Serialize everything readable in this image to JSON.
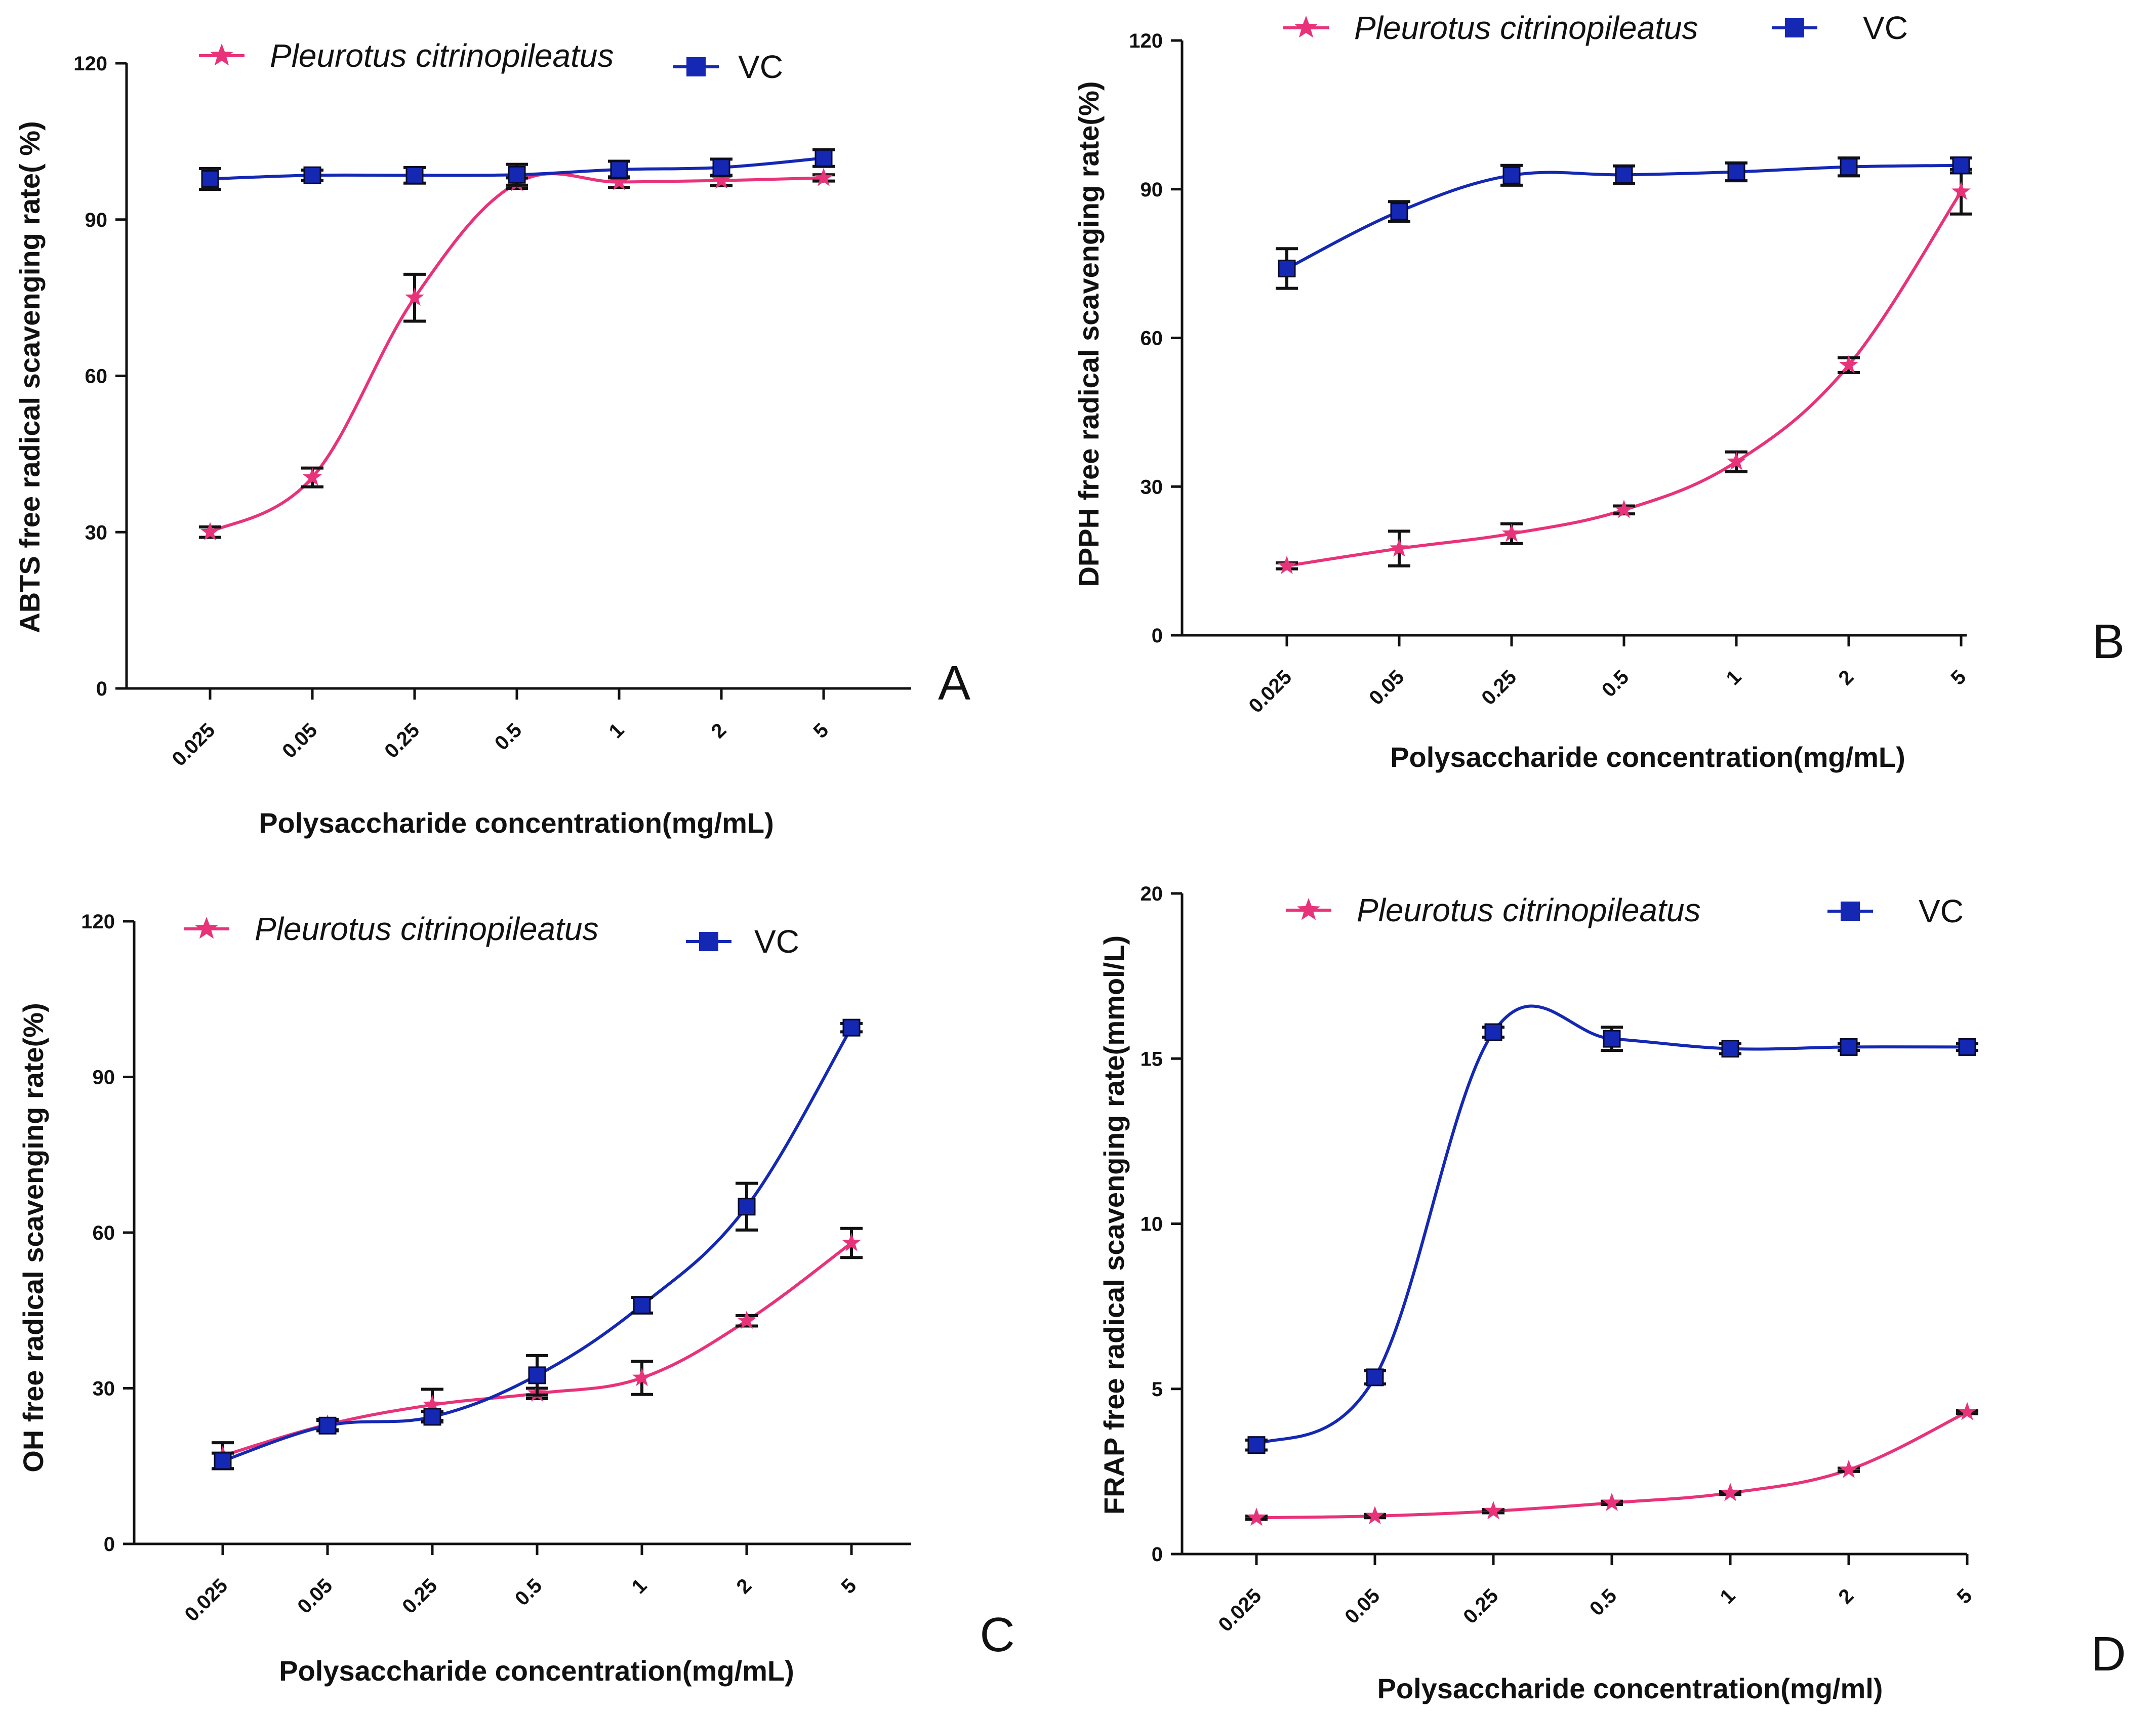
{
  "colors": {
    "pc": "#e8327a",
    "vc": "#1428b4",
    "axis": "#111111",
    "error": "#111111"
  },
  "chart_data": [
    {
      "type": "line",
      "panel": "A",
      "categories": [
        "0.025",
        "0.05",
        "0.25",
        "0.5",
        "1",
        "2",
        "5"
      ],
      "xlabel": "Polysaccharide concentration(mg/mL)",
      "ylabel": "ABTS free radical scavenging rate(   %)",
      "ylim": [
        0,
        120
      ],
      "yticks": [
        "0",
        "30",
        "60",
        "90",
        "120"
      ],
      "legend_position": "top",
      "series": [
        {
          "name": "Pleurotus citrinopileatus",
          "marker": "star",
          "values": [
            30,
            40.5,
            75,
            97,
            97.2,
            97.5,
            98
          ],
          "errors": [
            1,
            1.8,
            4.5,
            1,
            1,
            1,
            0.6
          ]
        },
        {
          "name": "VC",
          "marker": "square",
          "values": [
            97.8,
            98.5,
            98.5,
            98.6,
            99.6,
            100,
            101.8
          ],
          "errors": [
            2,
            1,
            1.5,
            2,
            1.6,
            1.6,
            1.6
          ]
        }
      ]
    },
    {
      "type": "line",
      "panel": "B",
      "categories": [
        "0.025",
        "0.05",
        "0.25",
        "0.5",
        "1",
        "2",
        "5"
      ],
      "xlabel": "Polysaccharide concentration(mg/mL)",
      "ylabel": "DPPH free radical scavenging rate(%)",
      "ylim": [
        0,
        120
      ],
      "yticks": [
        "0",
        "30",
        "60",
        "90",
        "120"
      ],
      "legend_position": "top",
      "series": [
        {
          "name": "Pleurotus citrinopileatus",
          "marker": "star",
          "values": [
            14,
            17.5,
            20.5,
            25.3,
            35,
            54.5,
            89.5
          ],
          "errors": [
            0.6,
            3.5,
            2,
            0.8,
            2,
            1.5,
            4.5
          ]
        },
        {
          "name": "VC",
          "marker": "square",
          "values": [
            74,
            85.5,
            92.8,
            92.9,
            93.5,
            94.5,
            94.8
          ],
          "errors": [
            4,
            2,
            2,
            1.8,
            1.8,
            1.8,
            1.5
          ]
        }
      ]
    },
    {
      "type": "line",
      "panel": "C",
      "categories": [
        "0.025",
        "0.05",
        "0.25",
        "0.5",
        "1",
        "2",
        "5"
      ],
      "xlabel": "Polysaccharide concentration(mg/mL)",
      "ylabel": "OH free radical scavenging rate(%)",
      "ylim": [
        0,
        120
      ],
      "yticks": [
        "0",
        "30",
        "60",
        "90",
        "120"
      ],
      "legend_position": "top",
      "series": [
        {
          "name": "Pleurotus citrinopileatus",
          "marker": "star",
          "values": [
            17,
            23,
            26.8,
            29,
            32,
            43,
            58
          ],
          "errors": [
            2.5,
            1,
            3,
            1,
            3.2,
            1,
            2.8
          ]
        },
        {
          "name": "VC",
          "marker": "square",
          "values": [
            16,
            22.8,
            24.5,
            32.5,
            46,
            65,
            99.5
          ],
          "errors": [
            1.5,
            1,
            1,
            3.8,
            1.5,
            4.5,
            0.8
          ]
        }
      ]
    },
    {
      "type": "line",
      "panel": "D",
      "categories": [
        "0.025",
        "0.05",
        "0.25",
        "0.5",
        "1",
        "2",
        "5"
      ],
      "xlabel": "Polysaccharide concentration(mg/ml)",
      "ylabel": "FRAP free radical scavenging rate(mmol/L)",
      "ylim": [
        0,
        20
      ],
      "yticks": [
        "0",
        "5",
        "10",
        "15",
        "20"
      ],
      "legend_position": "top",
      "series": [
        {
          "name": "Pleurotus citrinopileatus",
          "marker": "star",
          "values": [
            1.1,
            1.15,
            1.3,
            1.55,
            1.85,
            2.55,
            4.3
          ],
          "errors": [
            0.05,
            0.05,
            0.05,
            0.05,
            0.05,
            0.05,
            0.05
          ]
        },
        {
          "name": "VC",
          "marker": "square",
          "values": [
            3.3,
            5.35,
            15.8,
            15.6,
            15.3,
            15.35,
            15.35
          ],
          "errors": [
            0.15,
            0.2,
            0.15,
            0.35,
            0.15,
            0.1,
            0.1
          ]
        }
      ]
    }
  ]
}
